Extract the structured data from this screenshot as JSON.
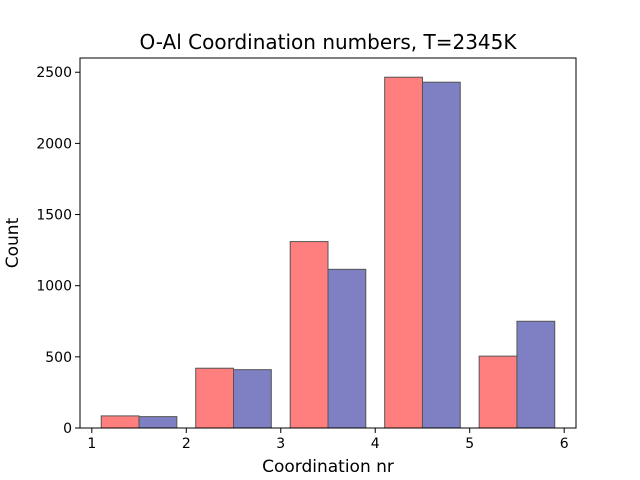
{
  "chart_data": {
    "type": "bar",
    "title": "O-Al Coordination numbers, T=2345K",
    "xlabel": "Coordination nr",
    "ylabel": "Count",
    "xlim": [
      0.875,
      6.125
    ],
    "ylim": [
      0,
      2600
    ],
    "xticks": [
      "1",
      "2",
      "3",
      "4",
      "5",
      "6"
    ],
    "yticks": [
      "0",
      "500",
      "1000",
      "1500",
      "2000",
      "2500"
    ],
    "grid": false,
    "bins": [
      {
        "left": 1.1,
        "right": 1.9
      },
      {
        "left": 2.1,
        "right": 2.9
      },
      {
        "left": 3.1,
        "right": 3.9
      },
      {
        "left": 4.1,
        "right": 4.9
      },
      {
        "left": 5.1,
        "right": 5.9
      }
    ],
    "series": [
      {
        "color": "#ff7f7f",
        "values": [
          85,
          420,
          1310,
          2465,
          505
        ]
      },
      {
        "color": "#7f7fc4",
        "values": [
          80,
          410,
          1115,
          2430,
          750
        ]
      }
    ],
    "edge_color": "#555555"
  }
}
